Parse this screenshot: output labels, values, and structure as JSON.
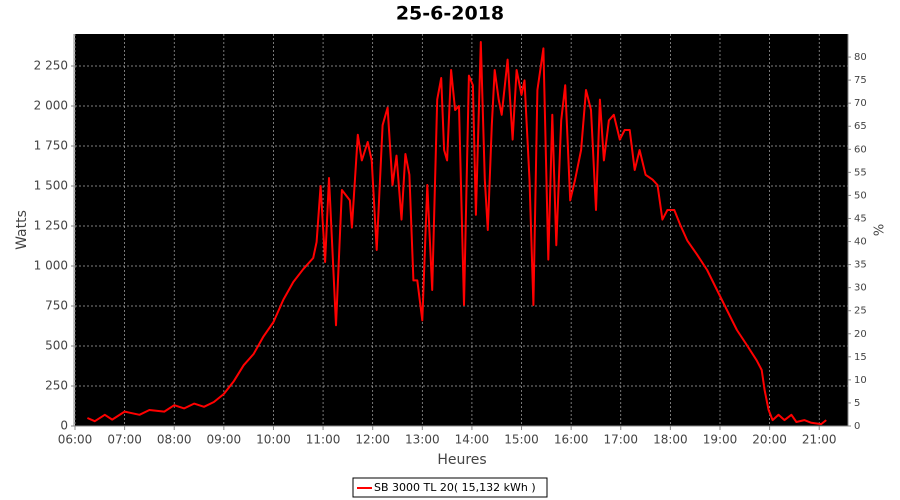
{
  "chart_data": {
    "type": "line",
    "title": "25-6-2018",
    "x_label": "Heures",
    "y_label": "Watts",
    "y2_label": "%",
    "grid": true,
    "legend": "bottom",
    "xlim": [
      6,
      21.58
    ],
    "xticks": [
      {
        "value": 6,
        "label": "06:00"
      },
      {
        "value": 7,
        "label": "07:00"
      },
      {
        "value": 8,
        "label": "08:00"
      },
      {
        "value": 9,
        "label": "09:00"
      },
      {
        "value": 10,
        "label": "10:00"
      },
      {
        "value": 11,
        "label": "11:00"
      },
      {
        "value": 12,
        "label": "12:00"
      },
      {
        "value": 13,
        "label": "13:00"
      },
      {
        "value": 14,
        "label": "14:00"
      },
      {
        "value": 15,
        "label": "15:00"
      },
      {
        "value": 16,
        "label": "16:00"
      },
      {
        "value": 17,
        "label": "17:00"
      },
      {
        "value": 18,
        "label": "18:00"
      },
      {
        "value": 19,
        "label": "19:00"
      },
      {
        "value": 20,
        "label": "20:00"
      },
      {
        "value": 21,
        "label": "21:00"
      }
    ],
    "ylim": [
      0,
      2450
    ],
    "yticks": [
      0,
      250,
      500,
      750,
      {
        "value": 1000,
        "label": "1 000"
      },
      {
        "value": 1250,
        "label": "1 250"
      },
      {
        "value": 1500,
        "label": "1 500"
      },
      {
        "value": 1750,
        "label": "1 750"
      },
      {
        "value": 2000,
        "label": "2 000"
      },
      {
        "value": 2250,
        "label": "2 250"
      }
    ],
    "y2lim": [
      0,
      85
    ],
    "y2ticks": [
      0,
      5,
      10,
      15,
      20,
      25,
      30,
      35,
      40,
      45,
      50,
      55,
      60,
      65,
      70,
      75,
      80
    ],
    "x": [
      6.25,
      6.4,
      6.6,
      6.75,
      7.0,
      7.3,
      7.5,
      7.8,
      8.0,
      8.2,
      8.4,
      8.6,
      8.8,
      9.0,
      9.2,
      9.4,
      9.6,
      9.8,
      10.0,
      10.2,
      10.4,
      10.6,
      10.8,
      10.87,
      10.95,
      11.04,
      11.12,
      11.26,
      11.38,
      11.54,
      11.58,
      11.7,
      11.78,
      11.9,
      11.98,
      12.08,
      12.2,
      12.3,
      12.4,
      12.48,
      12.58,
      12.66,
      12.74,
      12.82,
      12.9,
      13.0,
      13.1,
      13.2,
      13.3,
      13.38,
      13.44,
      13.5,
      13.58,
      13.66,
      13.74,
      13.84,
      13.94,
      14.02,
      14.08,
      14.18,
      14.26,
      14.32,
      14.4,
      14.46,
      14.54,
      14.6,
      14.72,
      14.82,
      14.9,
      15.0,
      15.06,
      15.16,
      15.24,
      15.32,
      15.44,
      15.54,
      15.62,
      15.7,
      15.8,
      15.88,
      15.98,
      16.08,
      16.2,
      16.3,
      16.4,
      16.5,
      16.58,
      16.66,
      16.76,
      16.86,
      16.98,
      17.08,
      17.18,
      17.28,
      17.38,
      17.5,
      17.64,
      17.74,
      17.84,
      17.94,
      18.08,
      18.2,
      18.34,
      18.54,
      18.74,
      18.94,
      19.14,
      19.34,
      19.54,
      19.74,
      19.84,
      19.9,
      19.98,
      20.06,
      20.18,
      20.3,
      20.44,
      20.54,
      20.7,
      20.84,
      21.04,
      21.14
    ],
    "series": [
      {
        "name": "SB 3000 TL 20( 15,132 kWh )",
        "color": "#ff0000",
        "values": [
          50,
          30,
          70,
          40,
          90,
          70,
          100,
          90,
          130,
          110,
          140,
          120,
          150,
          200,
          280,
          380,
          450,
          560,
          650,
          790,
          900,
          980,
          1050,
          1150,
          1500,
          1025,
          1550,
          630,
          1475,
          1410,
          1240,
          1820,
          1660,
          1775,
          1660,
          1100,
          1880,
          1990,
          1506,
          1690,
          1290,
          1700,
          1570,
          910,
          910,
          660,
          1506,
          850,
          2040,
          2175,
          1725,
          1660,
          2225,
          1975,
          2000,
          756,
          2190,
          2130,
          1320,
          2400,
          1540,
          1225,
          1880,
          2225,
          2040,
          1945,
          2290,
          1790,
          2225,
          2070,
          2160,
          1540,
          756,
          2100,
          2360,
          1040,
          1945,
          1130,
          1910,
          2130,
          1410,
          1540,
          1725,
          2100,
          1975,
          1350,
          2040,
          1660,
          1910,
          1945,
          1790,
          1850,
          1850,
          1600,
          1725,
          1570,
          1540,
          1506,
          1290,
          1350,
          1350,
          1256,
          1160,
          1070,
          975,
          850,
          725,
          600,
          506,
          410,
          350,
          225,
          100,
          37,
          70,
          37,
          70,
          25,
          37,
          20,
          12,
          37
        ]
      }
    ]
  }
}
